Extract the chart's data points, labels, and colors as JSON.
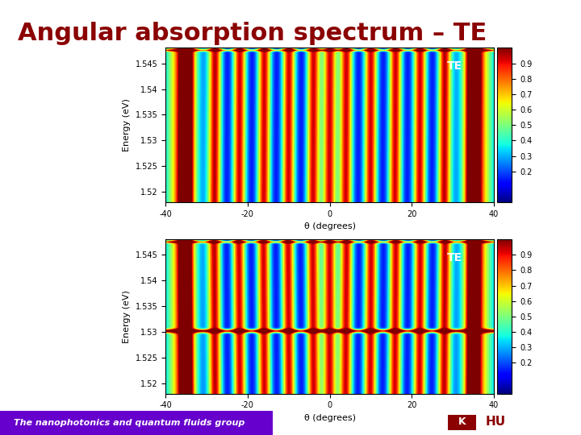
{
  "title": "Angular absorption spectrum – TE",
  "title_color": "#8B0000",
  "title_fontsize": 22,
  "title_fontstyle": "bold",
  "bg_color": "#FFFFFF",
  "energy_min": 1.518,
  "energy_max": 1.548,
  "theta_min": -40,
  "theta_max": 40,
  "energy_ticks": [
    1.52,
    1.525,
    1.53,
    1.535,
    1.54,
    1.545
  ],
  "theta_ticks": [
    -40,
    -20,
    0,
    20,
    40
  ],
  "cbar_ticks": [
    0.2,
    0.3,
    0.4,
    0.5,
    0.6,
    0.7,
    0.8,
    0.9
  ],
  "xlabel": "θ (degrees)",
  "ylabel": "Energy (eV)",
  "label_te": "TE",
  "footer_text": "The nanophotonics and quantum fluids group",
  "footer_color": "#FFFFFF",
  "footer_bg": "#6600CC"
}
